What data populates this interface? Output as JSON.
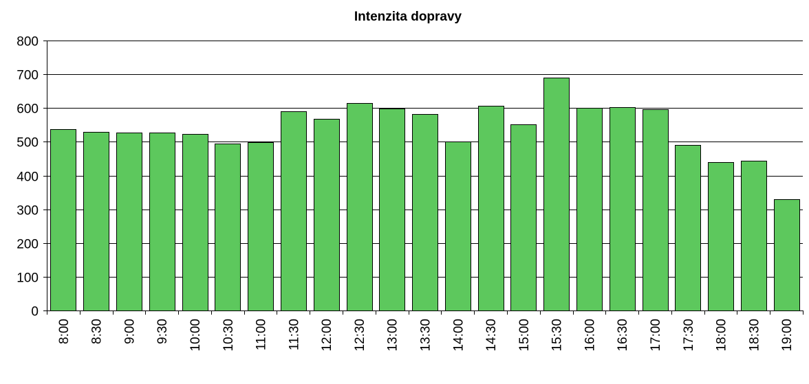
{
  "chart_data": {
    "type": "bar",
    "title": "Intenzita dopravy",
    "xlabel": "",
    "ylabel": "",
    "categories": [
      "8:00",
      "8:30",
      "9:00",
      "9:30",
      "10:00",
      "10:30",
      "11:00",
      "11:30",
      "12:00",
      "12:30",
      "13:00",
      "13:30",
      "14:00",
      "14:30",
      "15:00",
      "15:30",
      "16:00",
      "16:30",
      "17:00",
      "17:30",
      "18:00",
      "18:30",
      "19:00"
    ],
    "values": [
      538,
      530,
      528,
      527,
      524,
      494,
      498,
      591,
      567,
      614,
      598,
      582,
      500,
      606,
      551,
      691,
      600,
      602,
      596,
      490,
      439,
      443,
      329
    ],
    "ylim": [
      0,
      800
    ],
    "yticks": [
      "0",
      "100",
      "200",
      "300",
      "400",
      "500",
      "600",
      "700",
      "800"
    ],
    "grid": true,
    "bar_color": "#5dc85d",
    "legend": "none"
  }
}
